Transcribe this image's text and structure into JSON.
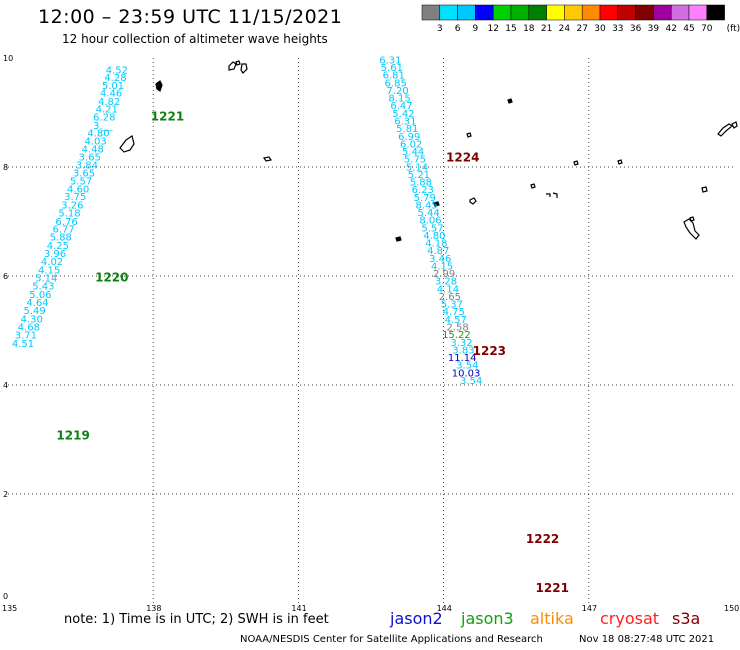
{
  "title": "12:00 – 23:59 UTC 11/15/2021",
  "subtitle": "12 hour collection of altimeter wave heights",
  "credit": "NOAA/NESDIS Center for Satellite Applications and Research",
  "generated": "Nov 18 08:27:48 UTC 2021",
  "note": "note: 1) Time is in UTC; 2) SWH is in feet",
  "satellites": [
    {
      "name": "jason2",
      "color": "#1010cc"
    },
    {
      "name": "jason3",
      "color": "#10a010"
    },
    {
      "name": "altika",
      "color": "#ff8c00"
    },
    {
      "name": "cryosat",
      "color": "#ff2020"
    },
    {
      "name": "s3a",
      "color": "#800000"
    }
  ],
  "color_scale": {
    "unit": "(ft)",
    "labels": [
      "3",
      "6",
      "9",
      "12",
      "15",
      "18",
      "21",
      "24",
      "27",
      "30",
      "33",
      "36",
      "39",
      "42",
      "45",
      "70"
    ],
    "colors": [
      "#808080",
      "#00e0ff",
      "#00c8ff",
      "#0000ff",
      "#00d000",
      "#00b000",
      "#008000",
      "#ffff00",
      "#ffc800",
      "#ff8c00",
      "#ff0000",
      "#c00000",
      "#800000",
      "#a000a0",
      "#d070e0",
      "#ff80ff",
      "#000000"
    ]
  },
  "axes": {
    "lon_ticks": [
      "135",
      "138",
      "141",
      "144",
      "147",
      "150"
    ],
    "lat_ticks": [
      "0",
      "2",
      "4",
      "6",
      "8",
      "10"
    ],
    "lon_range": [
      135,
      150
    ],
    "lat_range": [
      0,
      10
    ]
  },
  "tracks": [
    {
      "id": "left",
      "labels": [
        {
          "text": "1219",
          "lon": 136.0,
          "lat": 3.0,
          "color": "#108010"
        },
        {
          "text": "1220",
          "lon": 136.8,
          "lat": 5.9,
          "color": "#108010"
        },
        {
          "text": "1221",
          "lon": 137.95,
          "lat": 8.85,
          "color": "#108010"
        }
      ],
      "points": [
        {
          "lon": 137.48,
          "lat": 9.72,
          "v": "4.52",
          "c": "#00c8ff"
        },
        {
          "lon": 137.45,
          "lat": 9.58,
          "v": "4.28",
          "c": "#00c8ff"
        },
        {
          "lon": 137.4,
          "lat": 9.43,
          "v": "5.01",
          "c": "#00c8ff"
        },
        {
          "lon": 137.36,
          "lat": 9.29,
          "v": "4.46",
          "c": "#00c8ff"
        },
        {
          "lon": 137.32,
          "lat": 9.14,
          "v": "4.82",
          "c": "#00c8ff"
        },
        {
          "lon": 137.27,
          "lat": 9.0,
          "v": "4.21",
          "c": "#00c8ff"
        },
        {
          "lon": 137.22,
          "lat": 8.85,
          "v": "6.28",
          "c": "#00c8ff"
        },
        {
          "lon": 137.16,
          "lat": 8.7,
          "v": "3.__",
          "c": "#00c8ff"
        },
        {
          "lon": 137.1,
          "lat": 8.56,
          "v": "4.80",
          "c": "#00c8ff"
        },
        {
          "lon": 137.04,
          "lat": 8.41,
          "v": "4.03",
          "c": "#00c8ff"
        },
        {
          "lon": 136.98,
          "lat": 8.27,
          "v": "4.48",
          "c": "#00c8ff"
        },
        {
          "lon": 136.92,
          "lat": 8.12,
          "v": "3.65",
          "c": "#00c8ff"
        },
        {
          "lon": 136.86,
          "lat": 7.97,
          "v": "3.84",
          "c": "#00c8ff"
        },
        {
          "lon": 136.8,
          "lat": 7.83,
          "v": "3.65",
          "c": "#00c8ff"
        },
        {
          "lon": 136.74,
          "lat": 7.68,
          "v": "5.57",
          "c": "#00c8ff"
        },
        {
          "lon": 136.68,
          "lat": 7.53,
          "v": "4.60",
          "c": "#00c8ff"
        },
        {
          "lon": 136.62,
          "lat": 7.39,
          "v": "3.75",
          "c": "#00c8ff"
        },
        {
          "lon": 136.56,
          "lat": 7.24,
          "v": "3.26",
          "c": "#00c8ff"
        },
        {
          "lon": 136.5,
          "lat": 7.09,
          "v": "5.18",
          "c": "#00c8ff"
        },
        {
          "lon": 136.44,
          "lat": 6.94,
          "v": "6.76",
          "c": "#00c8ff"
        },
        {
          "lon": 136.38,
          "lat": 6.8,
          "v": "6.77",
          "c": "#00c8ff"
        },
        {
          "lon": 136.32,
          "lat": 6.65,
          "v": "5.88",
          "c": "#00c8ff"
        },
        {
          "lon": 136.26,
          "lat": 6.5,
          "v": "4.25",
          "c": "#00c8ff"
        },
        {
          "lon": 136.2,
          "lat": 6.35,
          "v": "3.96",
          "c": "#00c8ff"
        },
        {
          "lon": 136.14,
          "lat": 6.2,
          "v": "4.02",
          "c": "#00c8ff"
        },
        {
          "lon": 136.08,
          "lat": 6.05,
          "v": "4.15",
          "c": "#00c8ff"
        },
        {
          "lon": 136.02,
          "lat": 5.9,
          "v": "5.14",
          "c": "#00c8ff"
        },
        {
          "lon": 135.96,
          "lat": 5.75,
          "v": "5.43",
          "c": "#00c8ff"
        },
        {
          "lon": 135.9,
          "lat": 5.6,
          "v": "5.06",
          "c": "#00c8ff"
        },
        {
          "lon": 135.84,
          "lat": 5.45,
          "v": "4.64",
          "c": "#00c8ff"
        },
        {
          "lon": 135.78,
          "lat": 5.3,
          "v": "5.49",
          "c": "#00c8ff"
        },
        {
          "lon": 135.72,
          "lat": 5.15,
          "v": "4.30",
          "c": "#00c8ff"
        },
        {
          "lon": 135.66,
          "lat": 5.0,
          "v": "4.68",
          "c": "#00c8ff"
        },
        {
          "lon": 135.6,
          "lat": 4.85,
          "v": "3.71",
          "c": "#00c8ff"
        },
        {
          "lon": 135.54,
          "lat": 4.7,
          "v": "4.51",
          "c": "#00c8ff"
        }
      ]
    },
    {
      "id": "right",
      "labels": [
        {
          "text": "1224",
          "lon": 144.05,
          "lat": 8.1,
          "color": "#800000"
        },
        {
          "text": "1223",
          "lon": 144.6,
          "lat": 4.55,
          "color": "#800000"
        },
        {
          "text": "1222",
          "lon": 145.7,
          "lat": 1.1,
          "color": "#800000"
        },
        {
          "text": "1221",
          "lon": 145.9,
          "lat": 0.2,
          "color": "#800000"
        }
      ],
      "points": [
        {
          "lon": 143.13,
          "lat": 9.9,
          "v": "6.31",
          "c": "#00c8ff"
        },
        {
          "lon": 143.16,
          "lat": 9.76,
          "v": "5.61",
          "c": "#00c8ff"
        },
        {
          "lon": 143.2,
          "lat": 9.62,
          "v": "6.81",
          "c": "#00c8ff"
        },
        {
          "lon": 143.24,
          "lat": 9.48,
          "v": "6.85",
          "c": "#00c8ff"
        },
        {
          "lon": 143.28,
          "lat": 9.34,
          "v": "7.20",
          "c": "#00c8ff"
        },
        {
          "lon": 143.32,
          "lat": 9.2,
          "v": "8.15",
          "c": "#00c8ff"
        },
        {
          "lon": 143.36,
          "lat": 9.06,
          "v": "6.47",
          "c": "#00c8ff"
        },
        {
          "lon": 143.4,
          "lat": 8.92,
          "v": "5.42",
          "c": "#00c8ff"
        },
        {
          "lon": 143.44,
          "lat": 8.78,
          "v": "6.31",
          "c": "#00c8ff"
        },
        {
          "lon": 143.48,
          "lat": 8.64,
          "v": "5.81",
          "c": "#00c8ff"
        },
        {
          "lon": 143.52,
          "lat": 8.5,
          "v": "6.99",
          "c": "#00c8ff"
        },
        {
          "lon": 143.56,
          "lat": 8.36,
          "v": "6.02",
          "c": "#00c8ff"
        },
        {
          "lon": 143.6,
          "lat": 8.22,
          "v": "5.44",
          "c": "#00c8ff"
        },
        {
          "lon": 143.64,
          "lat": 8.08,
          "v": "5.75",
          "c": "#00c8ff"
        },
        {
          "lon": 143.68,
          "lat": 7.94,
          "v": "5.14",
          "c": "#00c8ff"
        },
        {
          "lon": 143.72,
          "lat": 7.8,
          "v": "5.21",
          "c": "#00c8ff"
        },
        {
          "lon": 143.76,
          "lat": 7.66,
          "v": "5.88",
          "c": "#00c8ff"
        },
        {
          "lon": 143.8,
          "lat": 7.52,
          "v": "6.23",
          "c": "#00c8ff"
        },
        {
          "lon": 143.84,
          "lat": 7.38,
          "v": "5.79",
          "c": "#00c8ff"
        },
        {
          "lon": 143.88,
          "lat": 7.24,
          "v": "8.45",
          "c": "#00c8ff"
        },
        {
          "lon": 143.92,
          "lat": 7.1,
          "v": "5.44",
          "c": "#00c8ff"
        },
        {
          "lon": 143.96,
          "lat": 6.96,
          "v": "8.06",
          "c": "#00c8ff"
        },
        {
          "lon": 144.0,
          "lat": 6.82,
          "v": "5.57",
          "c": "#00c8ff"
        },
        {
          "lon": 144.04,
          "lat": 6.68,
          "v": "4.80",
          "c": "#00c8ff"
        },
        {
          "lon": 144.08,
          "lat": 6.54,
          "v": "4.18",
          "c": "#00c8ff"
        },
        {
          "lon": 144.12,
          "lat": 6.4,
          "v": "4.87",
          "c": "#00c8ff"
        },
        {
          "lon": 144.16,
          "lat": 6.26,
          "v": "3.46",
          "c": "#00c8ff"
        },
        {
          "lon": 144.2,
          "lat": 6.12,
          "v": "4.15",
          "c": "#00c8ff"
        },
        {
          "lon": 144.24,
          "lat": 5.98,
          "v": "2.99",
          "c": "#808080"
        },
        {
          "lon": 144.28,
          "lat": 5.84,
          "v": "3.28",
          "c": "#00c8ff"
        },
        {
          "lon": 144.32,
          "lat": 5.7,
          "v": "4.14",
          "c": "#00c8ff"
        },
        {
          "lon": 144.36,
          "lat": 5.56,
          "v": "2.65",
          "c": "#808080"
        },
        {
          "lon": 144.4,
          "lat": 5.42,
          "v": "5.37",
          "c": "#00c8ff"
        },
        {
          "lon": 144.44,
          "lat": 5.28,
          "v": "4.75",
          "c": "#00c8ff"
        },
        {
          "lon": 144.48,
          "lat": 5.14,
          "v": "4.57",
          "c": "#00c8ff"
        },
        {
          "lon": 144.52,
          "lat": 5.0,
          "v": "2.58",
          "c": "#808080"
        },
        {
          "lon": 144.56,
          "lat": 4.86,
          "v": "15.22",
          "c": "#10a010"
        },
        {
          "lon": 144.6,
          "lat": 4.72,
          "v": "3.32",
          "c": "#00c8ff"
        },
        {
          "lon": 144.64,
          "lat": 4.58,
          "v": "3.83",
          "c": "#00c8ff"
        },
        {
          "lon": 144.68,
          "lat": 4.44,
          "v": "11.14",
          "c": "#0000c0"
        },
        {
          "lon": 144.72,
          "lat": 4.3,
          "v": "3.54",
          "c": "#00c8ff"
        },
        {
          "lon": 144.76,
          "lat": 4.16,
          "v": "10.03",
          "c": "#0000c0"
        },
        {
          "lon": 144.8,
          "lat": 4.02,
          "v": "3.54",
          "c": "#00c8ff"
        }
      ]
    }
  ]
}
